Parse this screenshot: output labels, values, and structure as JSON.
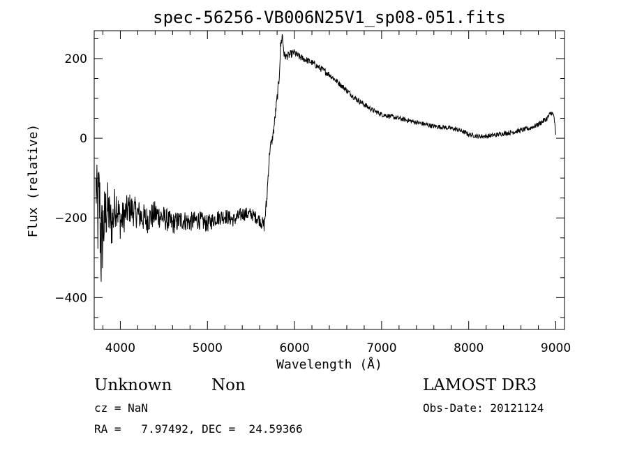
{
  "chart_data": {
    "type": "line",
    "title": "spec-56256-VB006N25V1_sp08-051.fits",
    "xlabel": "Wavelength (Å)",
    "ylabel": "Flux (relative)",
    "xlim": [
      3700,
      9100
    ],
    "ylim": [
      -480,
      270
    ],
    "xticks": [
      4000,
      5000,
      6000,
      7000,
      8000,
      9000
    ],
    "yticks": [
      -400,
      -200,
      0,
      200
    ],
    "xtick_labels": [
      "4000",
      "5000",
      "6000",
      "7000",
      "8000",
      "9000"
    ],
    "ytick_labels": [
      "−400",
      "−200",
      "0",
      "200"
    ],
    "grid": false,
    "series": [
      {
        "x": [
          3720,
          3740,
          3760,
          3780,
          3800,
          3850,
          3900,
          3950,
          4000,
          4100,
          4200,
          4300,
          4400,
          4500,
          4600,
          4700,
          4800,
          4900,
          5000,
          5100,
          5200,
          5300,
          5400,
          5500,
          5600,
          5650,
          5680,
          5700,
          5720,
          5740,
          5760,
          5780,
          5800,
          5820,
          5840,
          5860,
          5880,
          5900,
          5950,
          6000,
          6050,
          6100,
          6200,
          6300,
          6400,
          6500,
          6600,
          6700,
          6800,
          6900,
          7000,
          7100,
          7200,
          7300,
          7400,
          7500,
          7600,
          7700,
          7800,
          7900,
          7950,
          8000,
          8100,
          8200,
          8300,
          8400,
          8500,
          8600,
          8700,
          8800,
          8900,
          8950,
          8980,
          9000
        ],
        "y": [
          -120,
          -200,
          -150,
          -280,
          -230,
          -170,
          -220,
          -160,
          -210,
          -175,
          -190,
          -205,
          -190,
          -200,
          -215,
          -205,
          -210,
          -205,
          -215,
          -200,
          -195,
          -205,
          -190,
          -190,
          -205,
          -220,
          -160,
          -80,
          -20,
          -10,
          20,
          60,
          100,
          140,
          230,
          260,
          210,
          205,
          210,
          215,
          205,
          200,
          190,
          175,
          160,
          140,
          120,
          100,
          85,
          70,
          60,
          55,
          50,
          45,
          40,
          35,
          30,
          28,
          25,
          20,
          15,
          10,
          5,
          5,
          8,
          12,
          15,
          20,
          25,
          35,
          50,
          65,
          55,
          5
        ],
        "noise": [
          60,
          130,
          120,
          140,
          100,
          70,
          60,
          55,
          45,
          40,
          38,
          36,
          34,
          30,
          28,
          26,
          25,
          24,
          22,
          20,
          20,
          18,
          18,
          16,
          16,
          18,
          20,
          15,
          12,
          12,
          12,
          14,
          14,
          16,
          16,
          14,
          10,
          10,
          10,
          9,
          9,
          9,
          8,
          8,
          8,
          7,
          7,
          7,
          7,
          6,
          6,
          6,
          6,
          6,
          6,
          6,
          6,
          6,
          6,
          6,
          6,
          6,
          6,
          6,
          6,
          6,
          6,
          6,
          6,
          6,
          7,
          7,
          7,
          7
        ]
      }
    ]
  },
  "footer": {
    "object_class": "Unknown",
    "object_subclass": "Non",
    "survey": "LAMOST DR3",
    "cz": "cz = NaN",
    "obs_date": "Obs-Date: 20121124",
    "coords": "RA =   7.97492, DEC =  24.59366"
  }
}
